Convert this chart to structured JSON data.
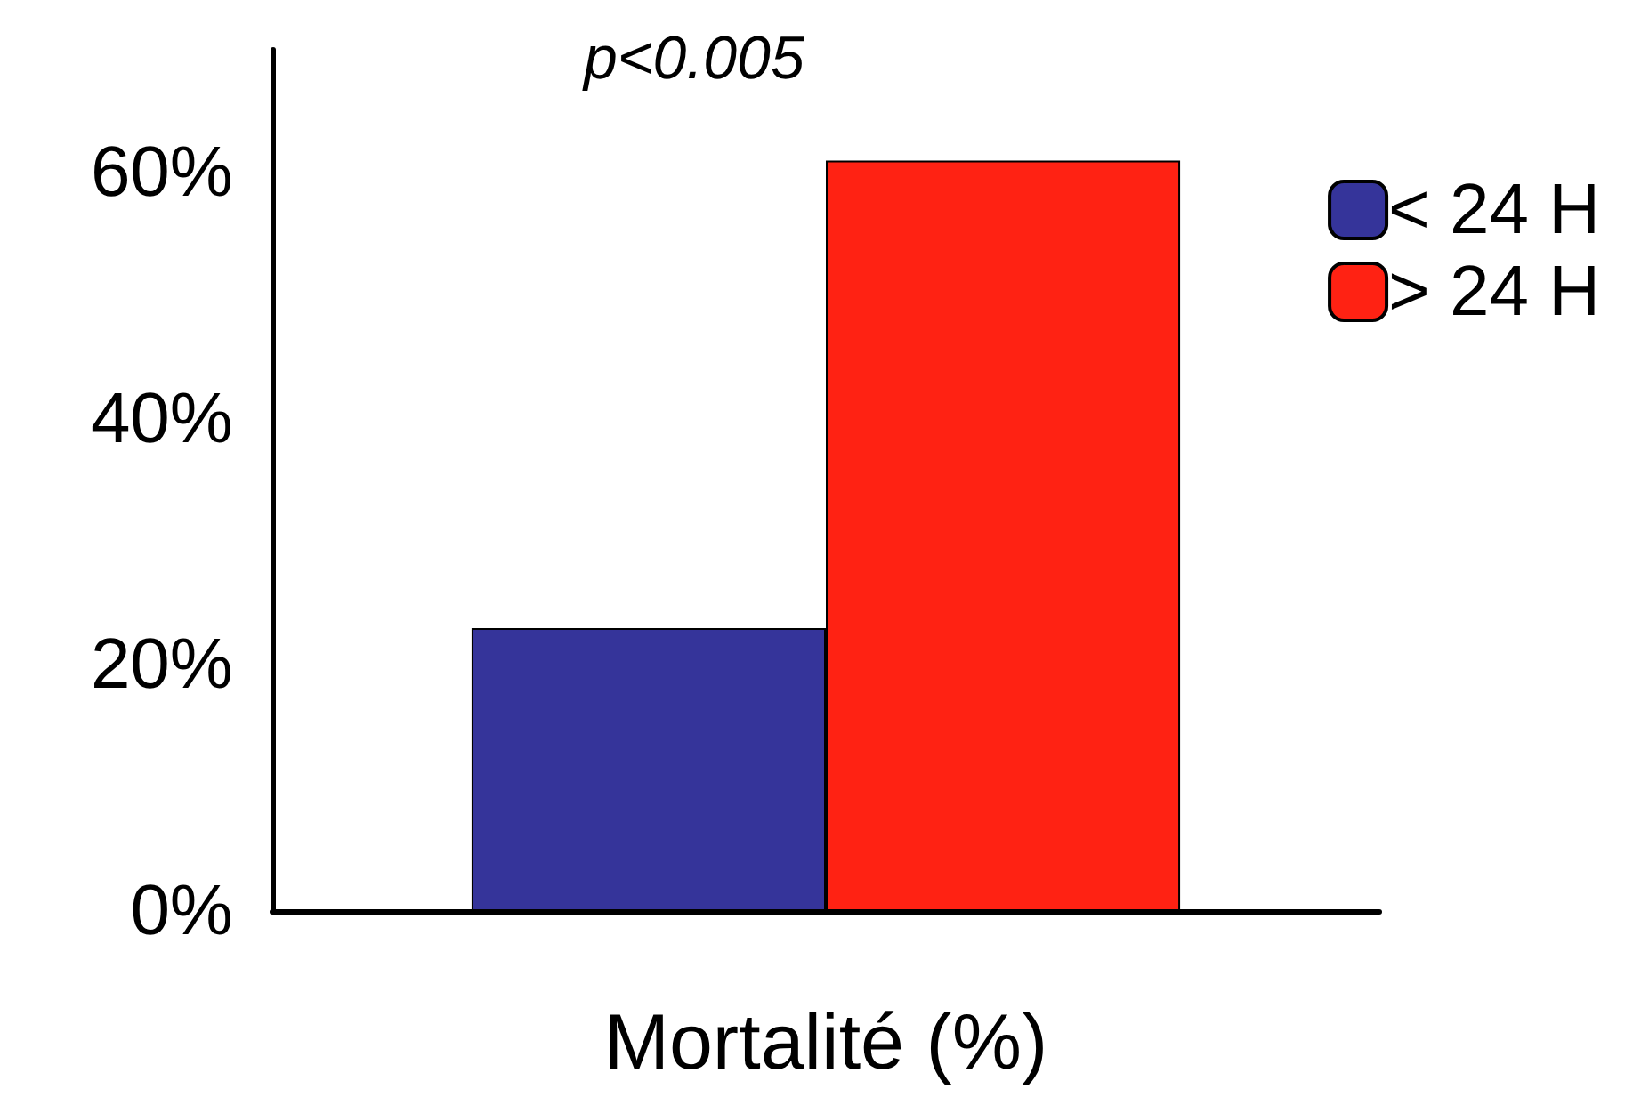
{
  "chart_data": {
    "type": "bar",
    "categories": [
      null
    ],
    "xlabel": "Mortalité (%)",
    "series": [
      {
        "name": "< 24 H",
        "color": "#35349a",
        "values": [
          23
        ]
      },
      {
        "name": "> 24 H",
        "color": "#ff2213",
        "values": [
          61
        ]
      }
    ],
    "ylim": [
      0,
      70
    ],
    "yticks": [
      {
        "value": 0,
        "label": "0%"
      },
      {
        "value": 20,
        "label": "20%"
      },
      {
        "value": 40,
        "label": "40%"
      },
      {
        "value": 60,
        "label": "60%"
      }
    ],
    "annotations": [
      "p<0.005"
    ],
    "legend": "top right",
    "grid": false
  }
}
